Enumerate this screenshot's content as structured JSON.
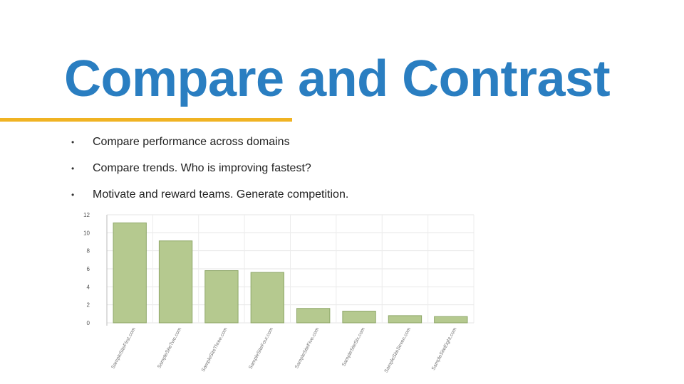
{
  "slide": {
    "title": "Compare and Contrast",
    "accent_color": "#f0b323",
    "title_color": "#2a7ec1",
    "bullets": [
      "Compare performance across domains",
      "Compare trends. Who is improving fastest?",
      "Motivate and reward teams. Generate competition."
    ]
  },
  "chart_data": {
    "type": "bar",
    "categories": [
      "SampleSiteFirst.com",
      "SampleSiteTwo.com",
      "SampleSiteThree.com",
      "SampleSiteFour.com",
      "SampleSiteFive.com",
      "SampleSiteSix.com",
      "SampleSiteSeven.com",
      "SampleSiteEight.com"
    ],
    "values": [
      11.1,
      9.1,
      5.8,
      5.6,
      1.6,
      1.3,
      0.8,
      0.7
    ],
    "yticks": [
      "0",
      "2",
      "4",
      "6",
      "8",
      "10",
      "12"
    ],
    "ylim": [
      0,
      12
    ],
    "grid": true,
    "bar_color": "#b5c98f",
    "bar_edge_color": "#8fa86a"
  }
}
